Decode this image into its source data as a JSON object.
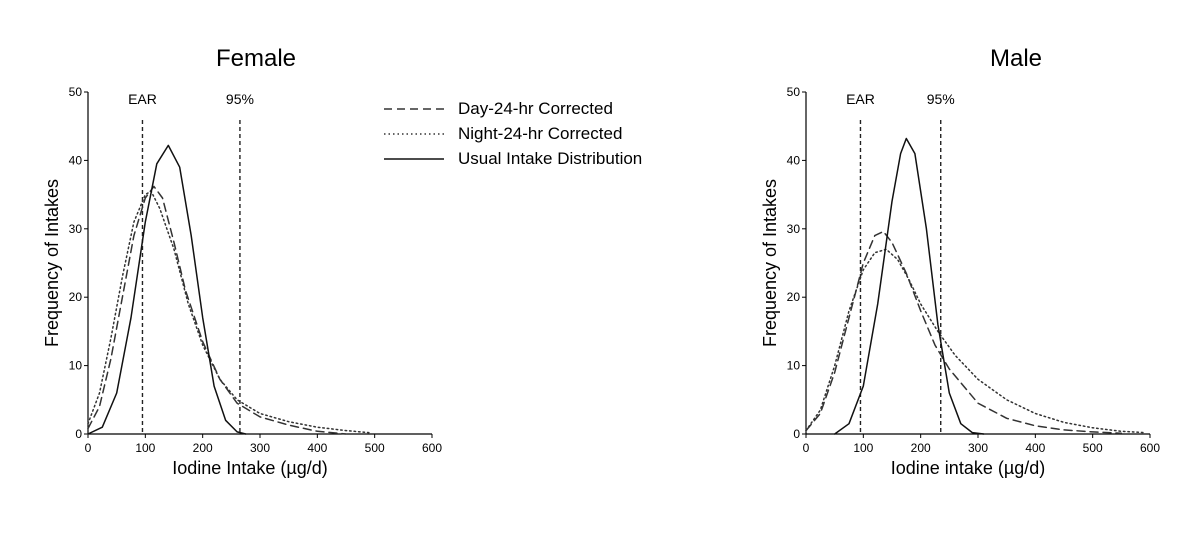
{
  "chart_data": [
    {
      "type": "line",
      "title": "Female",
      "xlabel": "Iodine Intake (µg/d)",
      "ylabel": "Frequency of Intakes",
      "xlim": [
        0,
        600
      ],
      "ylim": [
        0,
        50
      ],
      "xticks": [
        0,
        100,
        200,
        300,
        400,
        500,
        600
      ],
      "yticks": [
        0,
        10,
        20,
        30,
        40,
        50
      ],
      "reference_lines": [
        {
          "label": "EAR",
          "x": 95
        },
        {
          "label": "95%",
          "x": 265
        }
      ],
      "series": [
        {
          "name": "Day-24-hr Corrected",
          "style": "dashed",
          "x": [
            0,
            20,
            40,
            60,
            80,
            100,
            115,
            130,
            150,
            170,
            200,
            230,
            260,
            300,
            350,
            400,
            450
          ],
          "y": [
            0.8,
            4,
            11,
            20,
            29,
            34.5,
            36.2,
            34.5,
            28,
            21,
            13.5,
            8,
            4.5,
            2.5,
            1.3,
            0.4,
            0
          ]
        },
        {
          "name": "Night-24-hr Corrected",
          "style": "dotted",
          "x": [
            0,
            20,
            40,
            60,
            80,
            100,
            110,
            125,
            150,
            175,
            200,
            230,
            260,
            300,
            350,
            400,
            450,
            490
          ],
          "y": [
            1.5,
            6,
            14,
            23,
            31,
            35,
            35.5,
            33,
            27,
            19,
            13,
            8,
            5,
            3,
            1.8,
            1,
            0.5,
            0.2
          ]
        },
        {
          "name": "Usual Intake Distribution",
          "style": "solid",
          "x": [
            0,
            25,
            50,
            75,
            100,
            120,
            140,
            160,
            180,
            200,
            220,
            240,
            260,
            275
          ],
          "y": [
            0,
            1,
            6,
            17,
            31,
            39.5,
            42.2,
            39,
            29,
            17,
            7,
            2,
            0.3,
            0
          ]
        }
      ]
    },
    {
      "type": "line",
      "title": "Male",
      "xlabel": "Iodine intake (µg/d)",
      "ylabel": "Frequency of Intakes",
      "xlim": [
        0,
        600
      ],
      "ylim": [
        0,
        50
      ],
      "xticks": [
        0,
        100,
        200,
        300,
        400,
        500,
        600
      ],
      "yticks": [
        0,
        10,
        20,
        30,
        40,
        50
      ],
      "reference_lines": [
        {
          "label": "EAR",
          "x": 95
        },
        {
          "label": "95%",
          "x": 235
        }
      ],
      "series": [
        {
          "name": "Day-24-hr Corrected",
          "style": "dashed",
          "x": [
            0,
            25,
            50,
            75,
            100,
            120,
            135,
            150,
            175,
            200,
            225,
            250,
            300,
            350,
            400,
            450,
            500,
            550
          ],
          "y": [
            0.5,
            3,
            9,
            17,
            25,
            29,
            29.6,
            28,
            23.5,
            18,
            13,
            9.5,
            4.5,
            2.3,
            1.2,
            0.6,
            0.3,
            0.1
          ]
        },
        {
          "name": "Night-24-hr Corrected",
          "style": "dotted",
          "x": [
            0,
            25,
            50,
            75,
            100,
            120,
            140,
            160,
            180,
            200,
            230,
            260,
            300,
            350,
            400,
            450,
            500,
            550,
            590
          ],
          "y": [
            0.5,
            3.5,
            10,
            18,
            24,
            26.5,
            27,
            25.5,
            22.5,
            19,
            15,
            11.5,
            8,
            5,
            3,
            1.7,
            0.9,
            0.4,
            0.2
          ]
        },
        {
          "name": "Usual Intake Distribution",
          "style": "solid",
          "x": [
            50,
            75,
            100,
            125,
            150,
            165,
            175,
            190,
            210,
            230,
            250,
            270,
            290,
            310
          ],
          "y": [
            0,
            1.5,
            7,
            19,
            34,
            41,
            43.2,
            41,
            30,
            16,
            6,
            1.5,
            0.2,
            0
          ]
        }
      ]
    }
  ]
}
